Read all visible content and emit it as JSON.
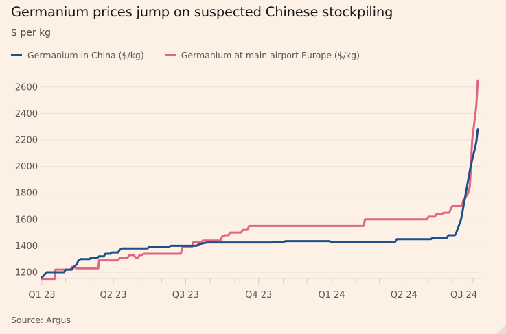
{
  "title": "Germanium prices jump on suspected Chinese stockpiling",
  "subtitle": "$ per kg",
  "source": "Source: Argus",
  "colors": {
    "background": "#fdf1e6",
    "china": "#1d4f8c",
    "europe": "#e06585",
    "grid": "#ebe1d8",
    "text": "#5a5553"
  },
  "legend": [
    {
      "label": "Germanium in China ($/kg)",
      "color": "#1d4f8c"
    },
    {
      "label": "Germanium at main airport Europe ($/kg)",
      "color": "#e06585"
    }
  ],
  "chart_data": {
    "type": "line",
    "title": "Germanium prices jump on suspected Chinese stockpiling",
    "subtitle": "$ per kg",
    "xlabel": "",
    "ylabel": "$ per kg",
    "x_unit": "days since 1 Jan 2023",
    "xlim": [
      0,
      549
    ],
    "ylim": [
      1140,
      2680
    ],
    "y_ticks": [
      1200,
      1400,
      1600,
      1800,
      2000,
      2200,
      2400,
      2600
    ],
    "x_ticks": [
      {
        "day": 0,
        "label": "Q1 23"
      },
      {
        "day": 90,
        "label": "Q2 23"
      },
      {
        "day": 181,
        "label": "Q3 23"
      },
      {
        "day": 273,
        "label": "Q4 23"
      },
      {
        "day": 365,
        "label": "Q1 24"
      },
      {
        "day": 456,
        "label": "Q2 24"
      },
      {
        "day": 547,
        "label": "Q3 24"
      }
    ],
    "minor_ticks": [
      30,
      59,
      120,
      151,
      212,
      243,
      304,
      334,
      396,
      425,
      486,
      517,
      533,
      543
    ],
    "grid": true,
    "legend_position": "top-left",
    "series": [
      {
        "name": "Germanium in China ($/kg)",
        "color": "#1d4f8c",
        "points": [
          [
            0,
            1160
          ],
          [
            3,
            1180
          ],
          [
            6,
            1200
          ],
          [
            28,
            1200
          ],
          [
            30,
            1220
          ],
          [
            38,
            1220
          ],
          [
            40,
            1240
          ],
          [
            44,
            1260
          ],
          [
            46,
            1290
          ],
          [
            49,
            1300
          ],
          [
            60,
            1300
          ],
          [
            62,
            1310
          ],
          [
            70,
            1310
          ],
          [
            72,
            1320
          ],
          [
            78,
            1320
          ],
          [
            80,
            1340
          ],
          [
            86,
            1340
          ],
          [
            88,
            1350
          ],
          [
            96,
            1350
          ],
          [
            98,
            1370
          ],
          [
            101,
            1380
          ],
          [
            133,
            1380
          ],
          [
            135,
            1390
          ],
          [
            160,
            1390
          ],
          [
            162,
            1400
          ],
          [
            195,
            1400
          ],
          [
            197,
            1410
          ],
          [
            204,
            1420
          ],
          [
            208,
            1425
          ],
          [
            290,
            1425
          ],
          [
            292,
            1430
          ],
          [
            305,
            1430
          ],
          [
            307,
            1435
          ],
          [
            362,
            1435
          ],
          [
            364,
            1430
          ],
          [
            445,
            1430
          ],
          [
            447,
            1450
          ],
          [
            490,
            1450
          ],
          [
            492,
            1460
          ],
          [
            510,
            1460
          ],
          [
            512,
            1480
          ],
          [
            520,
            1480
          ],
          [
            522,
            1500
          ],
          [
            525,
            1550
          ],
          [
            528,
            1600
          ],
          [
            531,
            1700
          ],
          [
            534,
            1800
          ],
          [
            537,
            1900
          ],
          [
            540,
            2000
          ],
          [
            544,
            2100
          ],
          [
            547,
            2180
          ],
          [
            549,
            2280
          ]
        ]
      },
      {
        "name": "Germanium at main airport Europe ($/kg)",
        "color": "#e06585",
        "points": [
          [
            0,
            1150
          ],
          [
            16,
            1150
          ],
          [
            17,
            1220
          ],
          [
            36,
            1220
          ],
          [
            38,
            1240
          ],
          [
            41,
            1240
          ],
          [
            43,
            1230
          ],
          [
            71,
            1230
          ],
          [
            72,
            1290
          ],
          [
            96,
            1290
          ],
          [
            98,
            1310
          ],
          [
            108,
            1310
          ],
          [
            110,
            1330
          ],
          [
            116,
            1330
          ],
          [
            118,
            1310
          ],
          [
            121,
            1310
          ],
          [
            123,
            1330
          ],
          [
            126,
            1330
          ],
          [
            128,
            1340
          ],
          [
            175,
            1340
          ],
          [
            177,
            1390
          ],
          [
            189,
            1390
          ],
          [
            191,
            1430
          ],
          [
            201,
            1430
          ],
          [
            203,
            1440
          ],
          [
            225,
            1440
          ],
          [
            227,
            1470
          ],
          [
            230,
            1480
          ],
          [
            235,
            1480
          ],
          [
            237,
            1500
          ],
          [
            251,
            1500
          ],
          [
            253,
            1520
          ],
          [
            259,
            1520
          ],
          [
            261,
            1550
          ],
          [
            405,
            1550
          ],
          [
            407,
            1600
          ],
          [
            485,
            1600
          ],
          [
            487,
            1620
          ],
          [
            495,
            1620
          ],
          [
            497,
            1640
          ],
          [
            504,
            1640
          ],
          [
            506,
            1650
          ],
          [
            513,
            1650
          ],
          [
            515,
            1680
          ],
          [
            517,
            1700
          ],
          [
            529,
            1700
          ],
          [
            531,
            1750
          ],
          [
            534,
            1770
          ],
          [
            537,
            1800
          ],
          [
            539,
            1850
          ],
          [
            540,
            1950
          ],
          [
            541,
            2100
          ],
          [
            542,
            2200
          ],
          [
            544,
            2300
          ],
          [
            545,
            2350
          ],
          [
            547,
            2450
          ],
          [
            548,
            2550
          ],
          [
            549,
            2650
          ]
        ]
      }
    ]
  }
}
